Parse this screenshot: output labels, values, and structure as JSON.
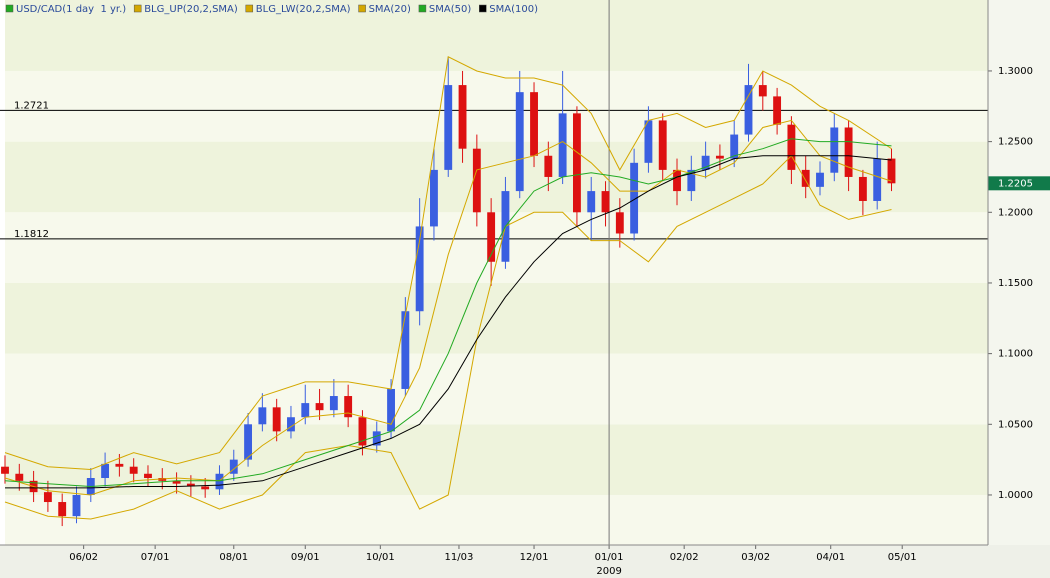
{
  "chart_data": {
    "type": "candlestick",
    "legend": [
      {
        "name": "USD/CAD(1 day  1 yr.)",
        "color": "#22aa22"
      },
      {
        "name": "BLG_UP(20,2,SMA)",
        "color": "#d4a800"
      },
      {
        "name": "BLG_LW(20,2,SMA)",
        "color": "#d4a800"
      },
      {
        "name": "SMA(20)",
        "color": "#d4a800"
      },
      {
        "name": "SMA(50)",
        "color": "#22aa22"
      },
      {
        "name": "SMA(100)",
        "color": "#000000"
      }
    ],
    "up_color": "#3a5fe0",
    "down_color": "#dd1111",
    "xlim": [
      0,
      275
    ],
    "ylim": [
      0.9646,
      1.3502
    ],
    "yticks": [
      {
        "value": 1.0,
        "label": "1.0000"
      },
      {
        "value": 1.05,
        "label": "1.0500"
      },
      {
        "value": 1.1,
        "label": "1.1000"
      },
      {
        "value": 1.15,
        "label": "1.1500"
      },
      {
        "value": 1.2,
        "label": "1.2000"
      },
      {
        "value": 1.25,
        "label": "1.2500"
      },
      {
        "value": 1.3,
        "label": "1.3000"
      }
    ],
    "xticks": [
      {
        "value": 22,
        "label": "06/02"
      },
      {
        "value": 42,
        "label": "07/01"
      },
      {
        "value": 64,
        "label": "08/01"
      },
      {
        "value": 84,
        "label": "09/01"
      },
      {
        "value": 105,
        "label": "10/01"
      },
      {
        "value": 127,
        "label": "11/03"
      },
      {
        "value": 148,
        "label": "12/01"
      },
      {
        "value": 169,
        "label": "01/01"
      },
      {
        "value": 190,
        "label": "02/02"
      },
      {
        "value": 210,
        "label": "03/02"
      },
      {
        "value": 231,
        "label": "04/01"
      },
      {
        "value": 251,
        "label": "05/01"
      }
    ],
    "crosshair": {
      "x": 169,
      "label": "2009"
    },
    "hlines": [
      {
        "value": 1.2721,
        "label": "1.2721"
      },
      {
        "value": 1.1812,
        "label": "1.1812"
      }
    ],
    "last_price": {
      "value": 1.2205,
      "label": "1.2205",
      "color": "#117a4a"
    },
    "candles": {
      "x": [
        0,
        4,
        8,
        12,
        16,
        20,
        24,
        28,
        32,
        36,
        40,
        44,
        48,
        52,
        56,
        60,
        64,
        68,
        72,
        76,
        80,
        84,
        88,
        92,
        96,
        100,
        104,
        108,
        112,
        116,
        120,
        124,
        128,
        132,
        136,
        140,
        144,
        148,
        152,
        156,
        160,
        164,
        168,
        172,
        176,
        180,
        184,
        188,
        192,
        196,
        200,
        204,
        208,
        212,
        216,
        220,
        224,
        228,
        232,
        236,
        240,
        244,
        248
      ],
      "open": [
        1.02,
        1.015,
        1.01,
        1.002,
        0.995,
        0.985,
        1.0,
        1.012,
        1.022,
        1.02,
        1.015,
        1.012,
        1.01,
        1.008,
        1.006,
        1.004,
        1.015,
        1.025,
        1.05,
        1.062,
        1.045,
        1.055,
        1.065,
        1.06,
        1.07,
        1.055,
        1.035,
        1.045,
        1.075,
        1.13,
        1.19,
        1.23,
        1.29,
        1.245,
        1.2,
        1.165,
        1.215,
        1.285,
        1.24,
        1.225,
        1.27,
        1.2,
        1.215,
        1.2,
        1.185,
        1.235,
        1.265,
        1.23,
        1.215,
        1.23,
        1.24,
        1.238,
        1.255,
        1.29,
        1.282,
        1.262,
        1.23,
        1.218,
        1.228,
        1.26,
        1.225,
        1.208,
        1.238
      ],
      "high": [
        1.028,
        1.022,
        1.017,
        1.01,
        1.001,
        1.006,
        1.019,
        1.03,
        1.029,
        1.026,
        1.021,
        1.019,
        1.016,
        1.014,
        1.012,
        1.021,
        1.032,
        1.058,
        1.072,
        1.068,
        1.063,
        1.078,
        1.075,
        1.082,
        1.078,
        1.06,
        1.052,
        1.082,
        1.14,
        1.21,
        1.245,
        1.31,
        1.3,
        1.255,
        1.21,
        1.225,
        1.3,
        1.292,
        1.25,
        1.3,
        1.275,
        1.225,
        1.222,
        1.21,
        1.245,
        1.275,
        1.27,
        1.238,
        1.24,
        1.25,
        1.248,
        1.265,
        1.305,
        1.3,
        1.288,
        1.268,
        1.24,
        1.236,
        1.27,
        1.265,
        1.23,
        1.25,
        1.245
      ],
      "low": [
        1.008,
        1.003,
        0.995,
        0.988,
        0.978,
        0.98,
        0.995,
        1.006,
        1.013,
        1.009,
        1.006,
        1.004,
        1.001,
        0.999,
        0.998,
        1.0,
        1.01,
        1.02,
        1.045,
        1.038,
        1.04,
        1.05,
        1.053,
        1.055,
        1.048,
        1.028,
        1.03,
        1.04,
        1.07,
        1.12,
        1.18,
        1.225,
        1.235,
        1.19,
        1.148,
        1.16,
        1.21,
        1.232,
        1.215,
        1.22,
        1.19,
        1.18,
        1.19,
        1.175,
        1.18,
        1.228,
        1.222,
        1.205,
        1.208,
        1.224,
        1.23,
        1.232,
        1.25,
        1.272,
        1.255,
        1.22,
        1.21,
        1.212,
        1.222,
        1.215,
        1.198,
        1.202,
        1.215
      ],
      "close": [
        1.015,
        1.01,
        1.002,
        0.995,
        0.985,
        1.0,
        1.012,
        1.022,
        1.02,
        1.015,
        1.012,
        1.01,
        1.008,
        1.006,
        1.004,
        1.015,
        1.025,
        1.05,
        1.062,
        1.045,
        1.055,
        1.065,
        1.06,
        1.07,
        1.055,
        1.035,
        1.045,
        1.075,
        1.13,
        1.19,
        1.23,
        1.29,
        1.245,
        1.2,
        1.165,
        1.215,
        1.285,
        1.24,
        1.225,
        1.27,
        1.2,
        1.215,
        1.2,
        1.185,
        1.235,
        1.265,
        1.23,
        1.215,
        1.23,
        1.24,
        1.238,
        1.255,
        1.29,
        1.282,
        1.262,
        1.23,
        1.218,
        1.228,
        1.26,
        1.225,
        1.208,
        1.238,
        1.2205
      ]
    },
    "x": [
      0,
      12,
      24,
      36,
      48,
      60,
      72,
      84,
      96,
      108,
      116,
      124,
      132,
      140,
      148,
      156,
      164,
      172,
      180,
      188,
      196,
      204,
      212,
      220,
      228,
      236,
      248
    ],
    "series": [
      {
        "name": "BLG_UP(20,2,SMA)",
        "color": "#d4a800",
        "values": [
          1.03,
          1.02,
          1.018,
          1.03,
          1.022,
          1.03,
          1.07,
          1.08,
          1.08,
          1.075,
          1.18,
          1.31,
          1.3,
          1.295,
          1.295,
          1.29,
          1.27,
          1.23,
          1.265,
          1.27,
          1.26,
          1.265,
          1.3,
          1.29,
          1.275,
          1.265,
          1.245
        ]
      },
      {
        "name": "BLG_LW(20,2,SMA)",
        "color": "#d4a800",
        "values": [
          0.995,
          0.985,
          0.983,
          0.99,
          1.003,
          0.99,
          1.0,
          1.03,
          1.035,
          1.03,
          0.99,
          1.0,
          1.11,
          1.19,
          1.2,
          1.2,
          1.18,
          1.18,
          1.165,
          1.19,
          1.2,
          1.21,
          1.22,
          1.24,
          1.205,
          1.195,
          1.202
        ]
      },
      {
        "name": "SMA(20)",
        "color": "#d4a800",
        "values": [
          1.012,
          1.003,
          1.0,
          1.01,
          1.012,
          1.01,
          1.035,
          1.055,
          1.058,
          1.05,
          1.09,
          1.17,
          1.23,
          1.235,
          1.24,
          1.25,
          1.235,
          1.215,
          1.215,
          1.23,
          1.225,
          1.235,
          1.26,
          1.265,
          1.24,
          1.232,
          1.222
        ]
      },
      {
        "name": "SMA(50)",
        "color": "#22aa22",
        "values": [
          1.01,
          1.008,
          1.006,
          1.008,
          1.01,
          1.01,
          1.015,
          1.025,
          1.035,
          1.045,
          1.06,
          1.1,
          1.15,
          1.19,
          1.215,
          1.225,
          1.228,
          1.225,
          1.22,
          1.225,
          1.232,
          1.24,
          1.245,
          1.252,
          1.25,
          1.25,
          1.247
        ]
      },
      {
        "name": "SMA(100)",
        "color": "#000000",
        "values": [
          1.005,
          1.005,
          1.005,
          1.006,
          1.006,
          1.007,
          1.01,
          1.02,
          1.03,
          1.04,
          1.05,
          1.075,
          1.11,
          1.14,
          1.165,
          1.185,
          1.195,
          1.203,
          1.215,
          1.225,
          1.23,
          1.238,
          1.24,
          1.24,
          1.24,
          1.24,
          1.237
        ]
      }
    ]
  }
}
